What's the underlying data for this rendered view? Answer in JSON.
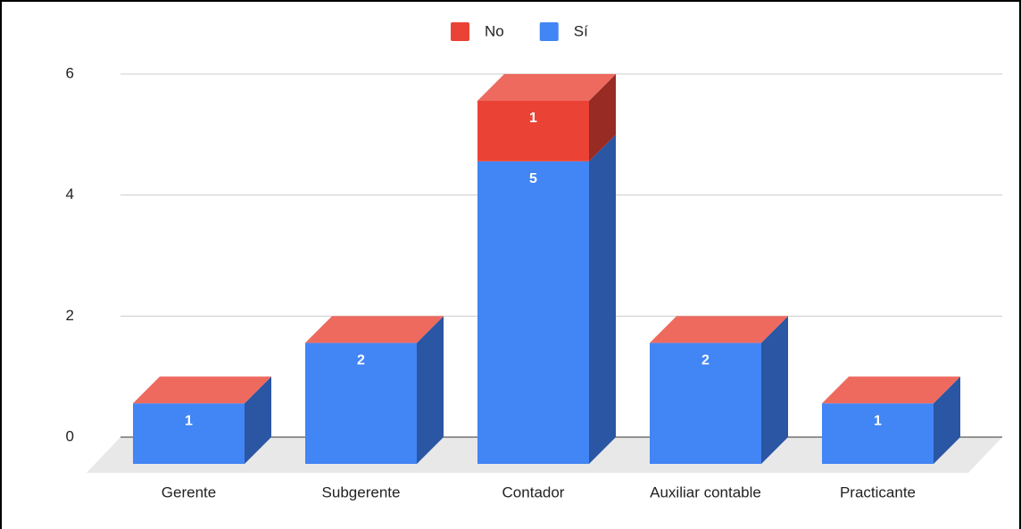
{
  "chart_data": {
    "type": "bar3d_stacked",
    "categories": [
      "Gerente",
      "Subgerente",
      "Contador",
      "Auxiliar contable",
      "Practicante"
    ],
    "series": [
      {
        "name": "Sí",
        "color": "#4285f4",
        "side": "#2a56a3",
        "top": "#7baaf7",
        "values": [
          1,
          2,
          5,
          2,
          1
        ]
      },
      {
        "name": "No",
        "color": "#ea4335",
        "side": "#982b24",
        "top": "#ee6a5f",
        "values": [
          0,
          0,
          1,
          0,
          0
        ]
      }
    ],
    "ylim": [
      0,
      6
    ],
    "yticks": [
      0,
      2,
      4,
      6
    ],
    "grid": true,
    "legend": "top"
  }
}
